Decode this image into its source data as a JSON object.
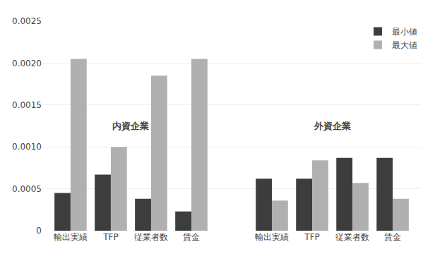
{
  "chart_data": {
    "type": "bar",
    "categories": [
      "輸出実績",
      "TFP",
      "従業者数",
      "賃金",
      "輸出実績",
      "TFP",
      "従業者数",
      "賃金"
    ],
    "series": [
      {
        "name": "最小値",
        "color": "#3d3d3d",
        "values": [
          0.00045,
          0.00067,
          0.00038,
          0.00023,
          0.00062,
          0.00062,
          0.00087,
          0.00087
        ]
      },
      {
        "name": "最大値",
        "color": "#b0b0b0",
        "values": [
          0.00205,
          0.001,
          0.00185,
          0.00205,
          0.00036,
          0.00084,
          0.00057,
          0.00038
        ]
      }
    ],
    "annotations": [
      "内資企業",
      "外資企業"
    ],
    "ylim": [
      0,
      0.0025
    ],
    "yticks": [
      0,
      0.0005,
      {
        "value": 0.001,
        "label": "0.0010"
      },
      0.0015,
      {
        "value": 0.002,
        "label": "0.0020"
      },
      0.0025
    ],
    "grid": true,
    "legend": "upper right"
  }
}
